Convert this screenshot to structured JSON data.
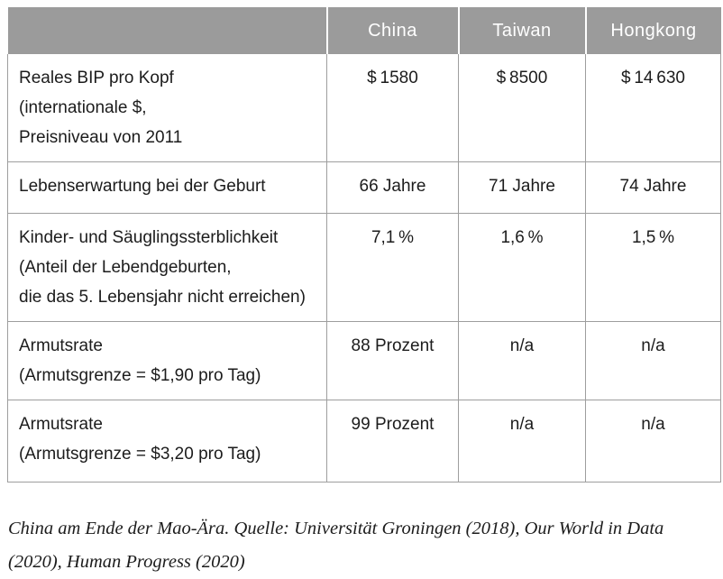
{
  "colors": {
    "header_bg": "#9b9b9b",
    "header_text": "#ffffff",
    "border": "#9e9e9e",
    "text": "#1c1c1c",
    "background": "#ffffff"
  },
  "table": {
    "header": [
      "",
      "China",
      "Taiwan",
      "Hongkong"
    ],
    "rows": [
      {
        "height_class": "row-h-118",
        "label_lines": [
          "Reales BIP pro Kopf",
          "(internationale $,",
          "Preisniveau von 2011"
        ],
        "values": [
          "$ 1580",
          "$ 8500",
          "$ 14 630"
        ]
      },
      {
        "height_class": "row-h-56",
        "label_lines": [
          "Lebenserwartung bei der Geburt"
        ],
        "values": [
          "66 Jahre",
          "71 Jahre",
          "74 Jahre"
        ]
      },
      {
        "height_class": "row-h-113",
        "label_lines": [
          "Kinder- und Säuglingssterblichkeit",
          "(Anteil der Lebendgeburten,",
          "die das 5. Lebensjahr nicht erreichen)"
        ],
        "values": [
          "7,1 %",
          "1,6 %",
          "1,5 %"
        ]
      },
      {
        "height_class": "row-h-85",
        "label_lines": [
          "Armutsrate",
          "(Armutsgrenze = $1,90 pro Tag)"
        ],
        "values": [
          "88 Prozent",
          "n/a",
          "n/a"
        ]
      },
      {
        "height_class": "row-h-90",
        "label_lines": [
          "Armutsrate",
          "(Armutsgrenze = $3,20 pro Tag)"
        ],
        "values": [
          "99 Prozent",
          "n/a",
          "n/a"
        ]
      }
    ]
  },
  "caption": "China am Ende der Mao-Ära. Quelle: Universität Groningen (2018), Our World in Data (2020), Human Progress (2020)",
  "chart_data": {
    "type": "table",
    "title": "China am Ende der Mao-Ära",
    "columns": [
      "",
      "China",
      "Taiwan",
      "Hongkong"
    ],
    "rows": [
      [
        "Reales BIP pro Kopf (internationale $, Preisniveau von 2011",
        "$ 1580",
        "$ 8500",
        "$ 14 630"
      ],
      [
        "Lebenserwartung bei der Geburt",
        "66 Jahre",
        "71 Jahre",
        "74 Jahre"
      ],
      [
        "Kinder- und Säuglingssterblichkeit (Anteil der Lebendgeburten, die das 5. Lebensjahr nicht erreichen)",
        "7,1 %",
        "1,6 %",
        "1,5 %"
      ],
      [
        "Armutsrate (Armutsgrenze = $1,90 pro Tag)",
        "88 Prozent",
        "n/a",
        "n/a"
      ],
      [
        "Armutsrate (Armutsgrenze = $3,20 pro Tag)",
        "99 Prozent",
        "n/a",
        "n/a"
      ]
    ],
    "caption": "China am Ende der Mao-Ära. Quelle: Universität Groningen (2018), Our World in Data (2020), Human Progress (2020)",
    "numeric_values": {
      "real_gdp_per_capita_intl_dollars_2011": {
        "China": 1580,
        "Taiwan": 8500,
        "Hongkong": 14630
      },
      "life_expectancy_at_birth_years": {
        "China": 66,
        "Taiwan": 71,
        "Hongkong": 74
      },
      "child_infant_mortality_percent": {
        "China": 7.1,
        "Taiwan": 1.6,
        "Hongkong": 1.5
      },
      "poverty_rate_1_90_per_day_percent": {
        "China": 88,
        "Taiwan": null,
        "Hongkong": null
      },
      "poverty_rate_3_20_per_day_percent": {
        "China": 99,
        "Taiwan": null,
        "Hongkong": null
      }
    }
  }
}
